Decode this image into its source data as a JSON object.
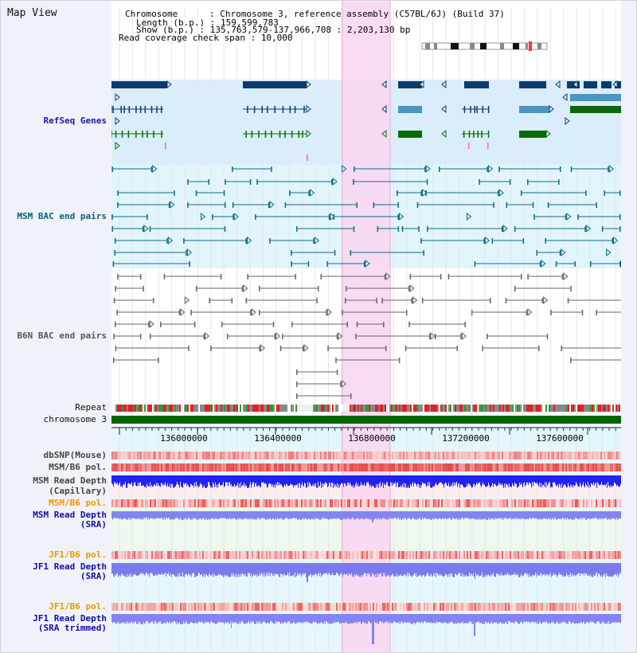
{
  "app": {
    "title": "Map View"
  },
  "info": {
    "chromosome_label": "Chromosome      : ",
    "chromosome_value": "Chromosome 3, reference assembly (C57BL/6J) (Build 37)",
    "length_label": "Length (b.p.) : ",
    "length_value": "159,599,783",
    "show_label": "Show (b.p.) : ",
    "show_value": "135,763,579-137,966,708 : 2,203,130 bp",
    "coverage_label": "Read coverage check span : ",
    "coverage_value": "10,000"
  },
  "tracks": {
    "refseq": "RefSeq Genes",
    "msm_bac": "MSM BAC end pairs",
    "b6n_bac": "B6N BAC end pairs",
    "repeat": "Repeat",
    "chromosome": "chromosome 3",
    "dbsnp": "dbSNP(Mouse)",
    "msm_b6_pol_1": "MSM/B6 pol.",
    "msm_depth_cap_1": "MSM Read Depth",
    "msm_depth_cap_2": "(Capillary)",
    "msm_b6_pol_2": "MSM/B6 pol.",
    "msm_depth_sra_1": "MSM Read Depth",
    "msm_depth_sra_2": "(SRA)",
    "jf1_b6_pol_1": "JF1/B6 pol.",
    "jf1_depth_sra_1": "JF1 Read Depth",
    "jf1_depth_sra_2": "(SRA)",
    "jf1_b6_pol_2": "JF1/B6 pol.",
    "jf1_depth_trim_1": "JF1 Read Depth",
    "jf1_depth_trim_2": "(SRA trimmed)"
  },
  "axis": {
    "ticks": [
      "136000000",
      "136400000",
      "136800000",
      "137200000",
      "137600000"
    ]
  },
  "colors": {
    "refseq_label": "#1a1aa0",
    "msm_label": "#0a5f7a",
    "b6n_label": "#555555",
    "orange_label": "#e89b00",
    "blue_label": "#1010a0",
    "highlight": "#f9d6f0",
    "chromosome_bar": "#006600"
  }
}
